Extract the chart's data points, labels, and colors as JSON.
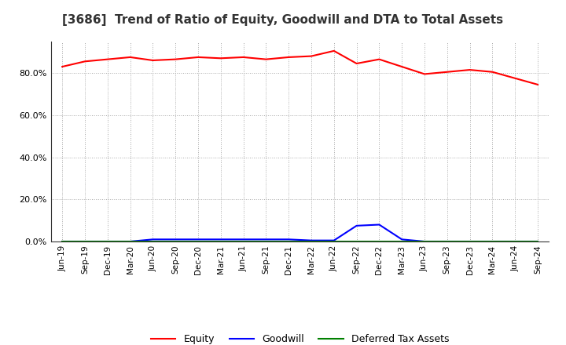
{
  "title": "[3686]  Trend of Ratio of Equity, Goodwill and DTA to Total Assets",
  "x_labels": [
    "Jun-19",
    "Sep-19",
    "Dec-19",
    "Mar-20",
    "Jun-20",
    "Sep-20",
    "Dec-20",
    "Mar-21",
    "Jun-21",
    "Sep-21",
    "Dec-21",
    "Mar-22",
    "Jun-22",
    "Sep-22",
    "Dec-22",
    "Mar-23",
    "Jun-23",
    "Sep-23",
    "Dec-23",
    "Mar-24",
    "Jun-24",
    "Sep-24"
  ],
  "equity": [
    83.0,
    85.5,
    86.5,
    87.5,
    86.0,
    86.5,
    87.5,
    87.0,
    87.5,
    86.5,
    87.5,
    88.0,
    90.5,
    84.5,
    86.5,
    83.0,
    79.5,
    80.5,
    81.5,
    80.5,
    77.5,
    74.5
  ],
  "goodwill": [
    0.0,
    0.0,
    0.0,
    0.0,
    1.0,
    1.0,
    1.0,
    1.0,
    1.0,
    1.0,
    1.0,
    0.5,
    0.5,
    7.5,
    8.0,
    1.0,
    0.0,
    0.0,
    0.0,
    0.0,
    0.0,
    0.0
  ],
  "dta": [
    0.0,
    0.0,
    0.0,
    0.0,
    0.0,
    0.0,
    0.0,
    0.0,
    0.0,
    0.0,
    0.0,
    0.0,
    0.0,
    0.0,
    0.0,
    0.0,
    0.0,
    0.0,
    0.0,
    0.0,
    0.0,
    0.0
  ],
  "equity_color": "#ff0000",
  "goodwill_color": "#0000ff",
  "dta_color": "#008000",
  "ylim": [
    0,
    95
  ],
  "yticks": [
    0,
    20,
    40,
    60,
    80
  ],
  "ytick_labels": [
    "0.0%",
    "20.0%",
    "40.0%",
    "60.0%",
    "80.0%"
  ],
  "background_color": "#ffffff",
  "grid_color": "#aaaaaa",
  "title_fontsize": 11,
  "legend_labels": [
    "Equity",
    "Goodwill",
    "Deferred Tax Assets"
  ]
}
